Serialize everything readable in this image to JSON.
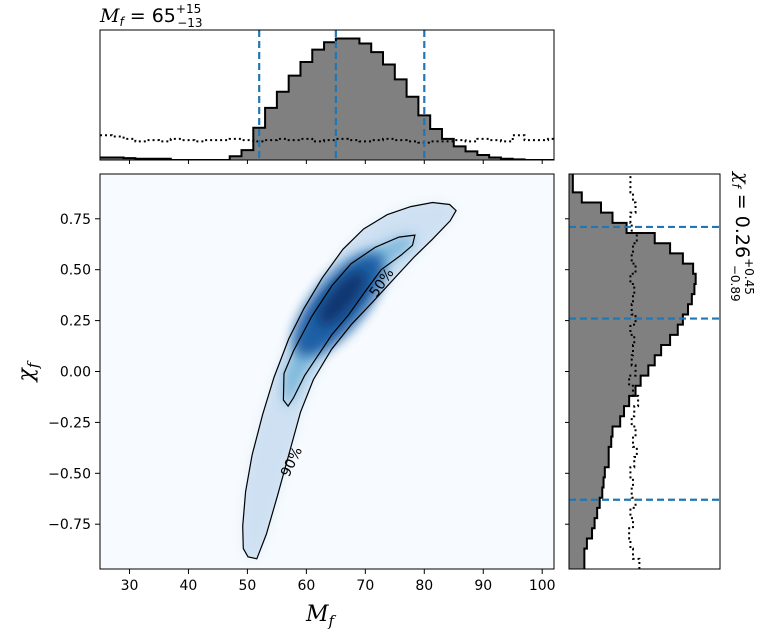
{
  "chart_data": {
    "type": "corner",
    "main": {
      "type": "heatmap",
      "xlabel": "M",
      "xlabel_sub": "f",
      "ylabel": "χ",
      "ylabel_sub": "f",
      "xlim": [
        25,
        102
      ],
      "ylim": [
        -0.97,
        0.97
      ],
      "xticks": [
        30,
        40,
        50,
        60,
        70,
        80,
        90,
        100
      ],
      "xtick_labels": [
        "30",
        "40",
        "50",
        "60",
        "70",
        "80",
        "90",
        "100"
      ],
      "yticks": [
        -0.75,
        -0.5,
        -0.25,
        0.0,
        0.25,
        0.5,
        0.75
      ],
      "ytick_labels": [
        "−0.75",
        "−0.50",
        "−0.25",
        "0.00",
        "0.25",
        "0.50",
        "0.75"
      ],
      "contours": [
        {
          "label": "50%",
          "points": [
            [
              56.1,
              -0.14
            ],
            [
              56.2,
              -0.01
            ],
            [
              57.8,
              0.1
            ],
            [
              60.9,
              0.27
            ],
            [
              64.3,
              0.42
            ],
            [
              67.6,
              0.53
            ],
            [
              71.7,
              0.61
            ],
            [
              75.7,
              0.66
            ],
            [
              78.4,
              0.67
            ],
            [
              78.0,
              0.62
            ],
            [
              76.0,
              0.57
            ],
            [
              72.7,
              0.5
            ],
            [
              69.9,
              0.39
            ],
            [
              67.2,
              0.28
            ],
            [
              64.3,
              0.18
            ],
            [
              62.0,
              0.08
            ],
            [
              59.7,
              -0.02
            ],
            [
              57.8,
              -0.13
            ],
            [
              56.9,
              -0.17
            ]
          ]
        },
        {
          "label": "90%",
          "points": [
            [
              50.1,
              -0.91
            ],
            [
              49.3,
              -0.87
            ],
            [
              49.2,
              -0.76
            ],
            [
              49.7,
              -0.59
            ],
            [
              50.8,
              -0.41
            ],
            [
              52.6,
              -0.21
            ],
            [
              54.5,
              -0.03
            ],
            [
              57.0,
              0.16
            ],
            [
              59.6,
              0.31
            ],
            [
              62.7,
              0.46
            ],
            [
              66.2,
              0.6
            ],
            [
              69.7,
              0.7
            ],
            [
              73.7,
              0.77
            ],
            [
              77.7,
              0.81
            ],
            [
              81.4,
              0.83
            ],
            [
              84.3,
              0.82
            ],
            [
              85.4,
              0.79
            ],
            [
              84.4,
              0.74
            ],
            [
              81.4,
              0.65
            ],
            [
              78.2,
              0.56
            ],
            [
              74.7,
              0.45
            ],
            [
              71.2,
              0.34
            ],
            [
              67.6,
              0.23
            ],
            [
              64.3,
              0.11
            ],
            [
              61.2,
              -0.04
            ],
            [
              59.0,
              -0.2
            ],
            [
              57.1,
              -0.4
            ],
            [
              55.1,
              -0.61
            ],
            [
              53.2,
              -0.8
            ],
            [
              51.6,
              -0.92
            ]
          ]
        }
      ]
    },
    "top": {
      "type": "histogram",
      "title_main": "M",
      "title_sub": "f",
      "title_value": " = 65",
      "title_plus": "+15",
      "title_minus": "−13",
      "bin_edges": [
        25,
        27,
        29,
        31,
        33,
        35,
        37,
        39,
        41,
        43,
        45,
        47,
        49,
        51,
        53,
        55,
        57,
        59,
        61,
        63,
        65,
        67,
        69,
        71,
        73,
        75,
        77,
        79,
        81,
        83,
        85,
        87,
        89,
        91,
        93,
        95,
        97,
        99,
        101,
        103
      ],
      "counts": [
        0.02,
        0.02,
        0.015,
        0.01,
        0.01,
        0.01,
        0,
        0,
        0,
        0,
        0,
        0.03,
        0.08,
        0.26,
        0.42,
        0.55,
        0.68,
        0.79,
        0.89,
        0.95,
        0.98,
        0.98,
        0.94,
        0.87,
        0.77,
        0.65,
        0.51,
        0.36,
        0.25,
        0.17,
        0.11,
        0.07,
        0.04,
        0.02,
        0.01,
        0.005,
        0,
        0,
        0
      ],
      "prior": [
        0.2,
        0.19,
        0.17,
        0.15,
        0.16,
        0.15,
        0.17,
        0.16,
        0.15,
        0.16,
        0.16,
        0.17,
        0.16,
        0.15,
        0.16,
        0.17,
        0.16,
        0.17,
        0.15,
        0.16,
        0.17,
        0.16,
        0.15,
        0.16,
        0.17,
        0.16,
        0.15,
        0.14,
        0.15,
        0.15,
        0.16,
        0.15,
        0.17,
        0.16,
        0.15,
        0.2,
        0.16,
        0.16,
        0.17
      ],
      "ylim": [
        0,
        1.0
      ],
      "quantiles": [
        52,
        65,
        80
      ]
    },
    "right": {
      "type": "histogram",
      "orientation": "horizontal",
      "title_main": "χ",
      "title_sub": "f",
      "title_value": " = 0.26",
      "title_plus": "+0.45",
      "title_minus": "−0.89",
      "bin_edges": [
        -0.97,
        -0.92,
        -0.87,
        -0.82,
        -0.77,
        -0.72,
        -0.67,
        -0.62,
        -0.57,
        -0.52,
        -0.47,
        -0.42,
        -0.37,
        -0.32,
        -0.27,
        -0.22,
        -0.17,
        -0.12,
        -0.07,
        -0.02,
        0.03,
        0.08,
        0.13,
        0.18,
        0.23,
        0.28,
        0.33,
        0.38,
        0.43,
        0.48,
        0.53,
        0.58,
        0.63,
        0.68,
        0.73,
        0.78,
        0.83,
        0.88,
        0.97
      ],
      "counts": [
        0.12,
        0.12,
        0.14,
        0.18,
        0.2,
        0.22,
        0.24,
        0.26,
        0.27,
        0.28,
        0.31,
        0.31,
        0.33,
        0.34,
        0.4,
        0.43,
        0.47,
        0.52,
        0.56,
        0.62,
        0.67,
        0.72,
        0.79,
        0.85,
        0.89,
        0.93,
        0.96,
        0.98,
        0.99,
        0.97,
        0.89,
        0.79,
        0.67,
        0.45,
        0.34,
        0.25,
        0.1,
        0.03
      ],
      "prior": [
        0.55,
        0.5,
        0.48,
        0.47,
        0.5,
        0.48,
        0.52,
        0.49,
        0.5,
        0.48,
        0.51,
        0.53,
        0.5,
        0.52,
        0.49,
        0.51,
        0.54,
        0.5,
        0.47,
        0.52,
        0.49,
        0.5,
        0.51,
        0.48,
        0.52,
        0.49,
        0.5,
        0.51,
        0.48,
        0.52,
        0.49,
        0.5,
        0.53,
        0.49,
        0.48,
        0.52,
        0.5,
        0.48
      ],
      "xlim": [
        0,
        1.18
      ],
      "quantiles": [
        -0.63,
        0.26,
        0.71
      ]
    },
    "colors": {
      "hist_fill": "#808080",
      "quantile_line": "#1f77b4",
      "heatmap_low": "#f7fbff",
      "heatmap_high": "#08306b"
    }
  }
}
